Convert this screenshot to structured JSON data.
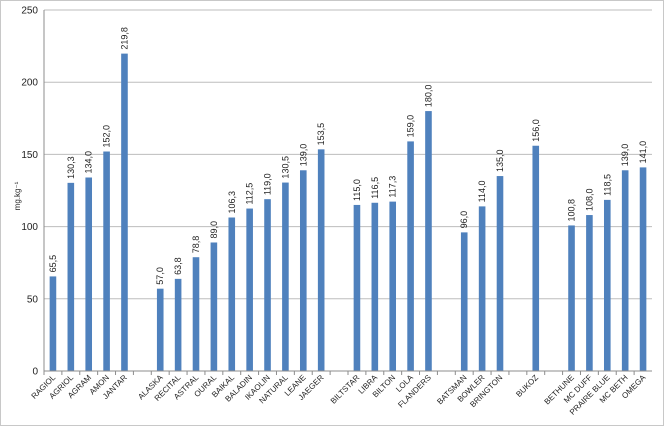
{
  "chart_data": {
    "type": "bar",
    "title": "",
    "xlabel": "",
    "ylabel": "mg.kg⁻¹",
    "ylim": [
      0,
      250
    ],
    "yticks": [
      0,
      50,
      100,
      150,
      200,
      250
    ],
    "grid": true,
    "legend": "none",
    "bar_color": "#4f81bd",
    "categories": [
      "RAGIOL",
      "AGRIOL",
      "AGRAM",
      "AMON",
      "JANTAR",
      "",
      "ALASKA",
      "RECITAL",
      "ASTRAL",
      "OURAL",
      "BAIKAL",
      "BALADIN",
      "IKAOLIN",
      "NATURAL",
      "LEANE",
      "JAEGER",
      "",
      "BILTSTAR",
      "LIBRA",
      "BILTON",
      "LOLA",
      "FLANDERS",
      "",
      "BATSMAN",
      "BOWLER",
      "BRINGTON",
      "",
      "BUKOZ",
      "",
      "BETHUNE",
      "MC DUFF",
      "PRAIRE BLUE",
      "MC BETH",
      "OMEGA"
    ],
    "values": [
      65.5,
      130.3,
      134.0,
      152.0,
      219.8,
      null,
      57.0,
      63.8,
      78.8,
      89.0,
      106.3,
      112.5,
      119.0,
      130.5,
      139.0,
      153.5,
      null,
      115.0,
      116.5,
      117.3,
      159.0,
      180.0,
      null,
      96.0,
      114.0,
      135.0,
      null,
      156.0,
      null,
      100.8,
      108.0,
      118.5,
      139.0,
      141.0
    ],
    "data_labels": [
      "65,5",
      "130,3",
      "134,0",
      "152,0",
      "219,8",
      "",
      "57,0",
      "63,8",
      "78,8",
      "89,0",
      "106,3",
      "112,5",
      "119,0",
      "130,5",
      "139,0",
      "153,5",
      "",
      "115,0",
      "116,5",
      "117,3",
      "159,0",
      "180,0",
      "",
      "96,0",
      "114,0",
      "135,0",
      "",
      "156,0",
      "",
      "100,8",
      "108,0",
      "118,5",
      "139,0",
      "141,0"
    ]
  }
}
